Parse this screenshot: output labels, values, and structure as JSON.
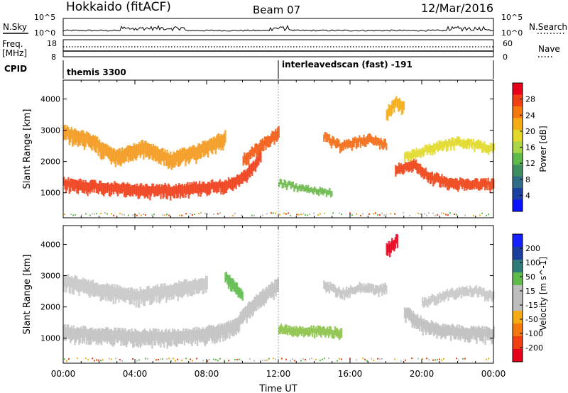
{
  "header": {
    "station": "Hokkaido (fitACF)",
    "beam": "Beam 07",
    "date": "12/Mar/2016"
  },
  "panels": {
    "nsky": {
      "label": "N.Sky",
      "right_label": "N.Search",
      "left_ticks": [
        "10^5",
        "10^0"
      ],
      "right_ticks": [
        "10^5",
        "10^0"
      ]
    },
    "freq": {
      "label_line1": "Freq.",
      "label_line2": "[MHz]",
      "right_label": "Nave",
      "left_ticks": [
        "18",
        "8"
      ],
      "right_ticks": [
        "60",
        "0"
      ]
    },
    "cpid": {
      "label": "CPID",
      "segments": [
        "themis 3300",
        "interleavedscan (fast) -191"
      ]
    }
  },
  "chart_data": [
    {
      "type": "heatmap",
      "name": "power",
      "xlabel": "Time UT",
      "ylabel": "Slant Range [km]",
      "xlim": [
        0,
        24
      ],
      "ylim": [
        200,
        4600
      ],
      "yticks": [
        1000,
        2000,
        3000,
        4000
      ],
      "colorbar": {
        "label": "Power [dB]",
        "ticks": [
          "28",
          "24",
          "20",
          "16",
          "12",
          "8",
          "4"
        ],
        "colors": [
          "#e8001b",
          "#f04012",
          "#f5780e",
          "#f4ab14",
          "#e2d92a",
          "#a8d645",
          "#5fbb4c",
          "#3e8e62",
          "#2f6e86",
          "#1c3fa3",
          "#0b12ff"
        ]
      },
      "echo_bands": [
        {
          "t": [
            0.0,
            2.0,
            4.0,
            6.0,
            8.0,
            9.5,
            10.5,
            11.0
          ],
          "r": [
            1250,
            1150,
            1050,
            1050,
            1150,
            1250,
            1700,
            2200
          ],
          "width": 400,
          "color": "#ef3e1a"
        },
        {
          "t": [
            10.0,
            11.0,
            12.0
          ],
          "r": [
            2000,
            2450,
            2900
          ],
          "width": 400,
          "color": "#f25a14"
        },
        {
          "t": [
            0.0,
            1.5,
            3.0,
            4.5,
            6.0,
            7.5,
            9.0
          ],
          "r": [
            2900,
            2600,
            2100,
            2400,
            2000,
            2300,
            2700
          ],
          "width": 500,
          "color": "#f39a1d"
        },
        {
          "t": [
            12.0,
            13.5,
            15.0
          ],
          "r": [
            1300,
            1100,
            1000
          ],
          "width": 200,
          "color": "#6ab94a"
        },
        {
          "t": [
            14.5,
            15.5,
            16.5,
            17.0,
            18.0
          ],
          "r": [
            2750,
            2450,
            2650,
            2700,
            2500
          ],
          "width": 300,
          "color": "#f26c15"
        },
        {
          "t": [
            18.5,
            19.5,
            20.5,
            22.0,
            24.0
          ],
          "r": [
            1700,
            1900,
            1450,
            1250,
            1250
          ],
          "width": 350,
          "color": "#ef4316"
        },
        {
          "t": [
            19.0,
            20.0,
            21.0,
            22.0,
            24.0
          ],
          "r": [
            2100,
            2300,
            2500,
            2600,
            2400
          ],
          "width": 300,
          "color": "#e2d92a"
        },
        {
          "t": [
            18.0,
            18.5,
            19.0
          ],
          "r": [
            3500,
            3850,
            3700
          ],
          "width": 400,
          "color": "#f4ab14"
        }
      ]
    },
    {
      "type": "heatmap",
      "name": "velocity",
      "xlabel": "Time UT",
      "ylabel": "Slant Range [km]",
      "xlim": [
        0,
        24
      ],
      "ylim": [
        200,
        4600
      ],
      "yticks": [
        1000,
        2000,
        3000,
        4000
      ],
      "xticks": [
        "00:00",
        "04:00",
        "08:00",
        "12:00",
        "16:00",
        "20:00",
        "00:00"
      ],
      "colorbar": {
        "label": "Velocity [m s^-1]",
        "ticks": [
          "200",
          "100",
          "50",
          "15",
          "-15",
          "-50",
          "-100",
          "-200"
        ],
        "colors": [
          "#1620ff",
          "#1b3fa0",
          "#2e7c7a",
          "#5fbb4c",
          "#bdbdbd",
          "#bdbdbd",
          "#f4ab14",
          "#f5780e",
          "#f04012",
          "#e8001b"
        ]
      },
      "echo_bands": [
        {
          "t": [
            0.0,
            2.0,
            4.0,
            6.0,
            8.0,
            9.5,
            10.5,
            12.0
          ],
          "r": [
            1150,
            1050,
            1000,
            1000,
            1100,
            1300,
            2000,
            2700
          ],
          "width": 500,
          "color": "#c2c2c2"
        },
        {
          "t": [
            0.0,
            2.0,
            4.0,
            6.0,
            8.0
          ],
          "r": [
            2800,
            2500,
            2300,
            2500,
            2700
          ],
          "width": 500,
          "color": "#c8c8c8"
        },
        {
          "t": [
            9.0,
            9.5,
            10.0
          ],
          "r": [
            2900,
            2600,
            2300
          ],
          "width": 400,
          "color": "#5fbb4c"
        },
        {
          "t": [
            12.0,
            14.0,
            15.5
          ],
          "r": [
            1250,
            1200,
            1150
          ],
          "width": 300,
          "color": "#8cc34a"
        },
        {
          "t": [
            14.5,
            15.5,
            16.5,
            17.5,
            18.0
          ],
          "r": [
            2700,
            2400,
            2600,
            2500,
            2600
          ],
          "width": 300,
          "color": "#c4c4c4"
        },
        {
          "t": [
            19.0,
            20.0,
            21.0,
            22.0,
            24.0
          ],
          "r": [
            1800,
            1400,
            1200,
            1150,
            1100
          ],
          "width": 450,
          "color": "#bebebe"
        },
        {
          "t": [
            20.0,
            21.5,
            23.0,
            24.0
          ],
          "r": [
            2100,
            2400,
            2500,
            2300
          ],
          "width": 300,
          "color": "#c8c8c8"
        },
        {
          "t": [
            18.0,
            18.6
          ],
          "r": [
            3800,
            4100
          ],
          "width": 400,
          "color": "#e8001b"
        }
      ]
    }
  ]
}
